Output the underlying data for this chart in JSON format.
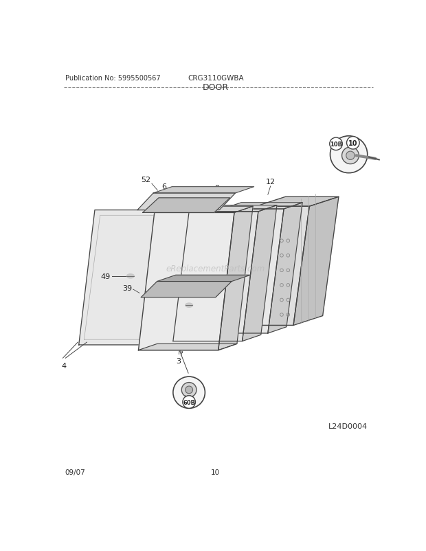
{
  "pub_no": "Publication No: 5995500567",
  "model": "CRG3110GWBA",
  "section": "DOOR",
  "date": "09/07",
  "page": "10",
  "diagram_id": "L24D0004",
  "watermark": "eReplacementParts.com",
  "bg_color": "#ffffff",
  "line_color": "#444444",
  "title_fontsize": 9,
  "label_fontsize": 8
}
